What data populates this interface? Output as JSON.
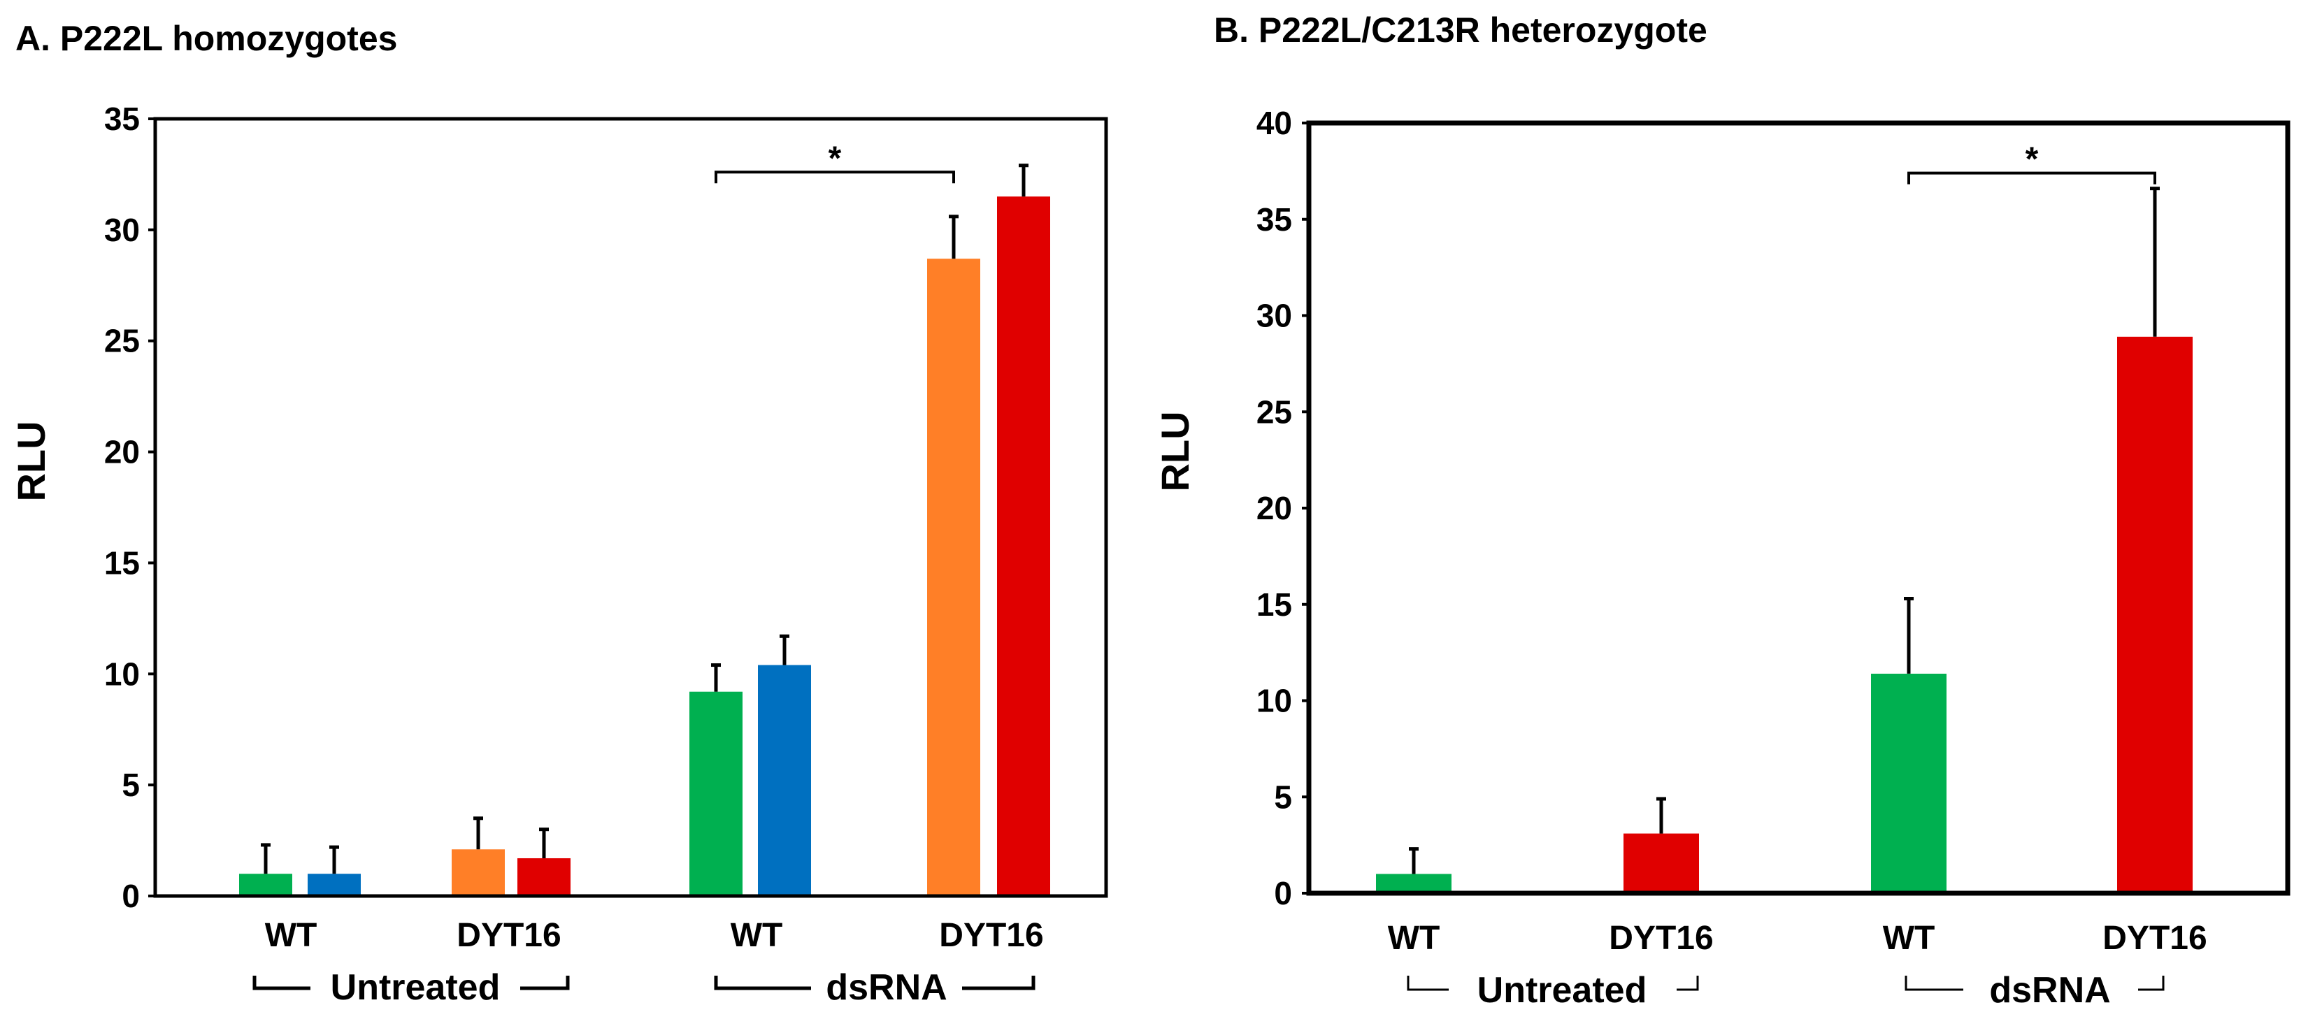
{
  "chart_data": [
    {
      "type": "bar",
      "title": "A. P222L homozygotes",
      "ylabel": "RLU",
      "ylim": [
        0,
        35
      ],
      "yticks": [
        0,
        5,
        10,
        15,
        20,
        25,
        30,
        35
      ],
      "categories": [
        "WT",
        "DYT16",
        "WT",
        "DYT16"
      ],
      "groups": [
        "Untreated",
        "dsRNA"
      ],
      "bars": [
        {
          "label": "WT",
          "group": "Untreated",
          "value": 1.0,
          "error": 1.3,
          "color": "#00b050"
        },
        {
          "label": "WT",
          "group": "Untreated",
          "value": 1.0,
          "error": 1.2,
          "color": "#0070c0"
        },
        {
          "label": "DYT16",
          "group": "Untreated",
          "value": 2.1,
          "error": 1.4,
          "color": "#ff7f27"
        },
        {
          "label": "DYT16",
          "group": "Untreated",
          "value": 1.7,
          "error": 1.3,
          "color": "#e00000"
        },
        {
          "label": "WT",
          "group": "dsRNA",
          "value": 9.2,
          "error": 1.2,
          "color": "#00b050"
        },
        {
          "label": "WT",
          "group": "dsRNA",
          "value": 10.4,
          "error": 1.3,
          "color": "#0070c0"
        },
        {
          "label": "DYT16",
          "group": "dsRNA",
          "value": 28.7,
          "error": 1.9,
          "color": "#ff7f27"
        },
        {
          "label": "DYT16",
          "group": "dsRNA",
          "value": 31.5,
          "error": 1.4,
          "color": "#e00000"
        }
      ],
      "significance": {
        "label": "*",
        "from_bar": 4,
        "to_bar": 6,
        "at": 32.6
      }
    },
    {
      "type": "bar",
      "title": "B. P222L/C213R heterozygote",
      "ylabel": "RLU",
      "ylim": [
        0,
        40
      ],
      "yticks": [
        0,
        5,
        10,
        15,
        20,
        25,
        30,
        35,
        40
      ],
      "categories": [
        "WT",
        "DYT16",
        "WT",
        "DYT16"
      ],
      "groups": [
        "Untreated",
        "dsRNA"
      ],
      "bars": [
        {
          "label": "WT",
          "group": "Untreated",
          "value": 1.0,
          "error": 1.3,
          "color": "#00b050"
        },
        {
          "label": "DYT16",
          "group": "Untreated",
          "value": 3.1,
          "error": 1.8,
          "color": "#e00000"
        },
        {
          "label": "WT",
          "group": "dsRNA",
          "value": 11.4,
          "error": 3.9,
          "color": "#00b050"
        },
        {
          "label": "DYT16",
          "group": "dsRNA",
          "value": 28.9,
          "error": 7.7,
          "color": "#e00000"
        }
      ],
      "significance": {
        "label": "*",
        "from_bar": 2,
        "to_bar": 3,
        "at": 37.4
      }
    }
  ]
}
